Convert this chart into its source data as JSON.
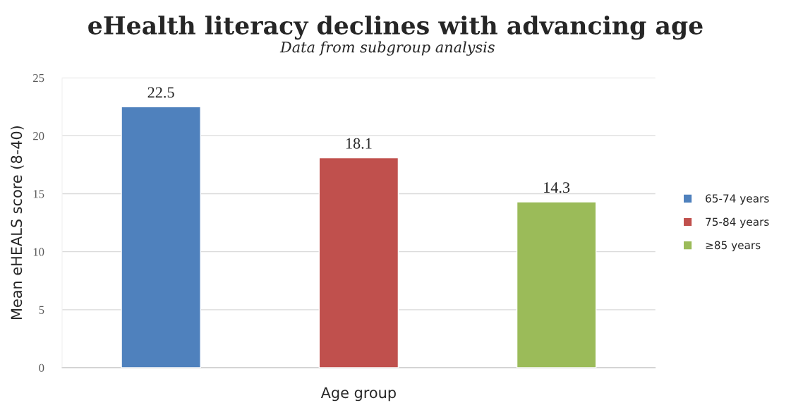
{
  "chart_data": {
    "type": "bar",
    "title": "eHealth literacy declines with advancing age",
    "subtitle": "Data from subgroup analysis",
    "xlabel": "Age group",
    "ylabel": "Mean eHEALS score (8-40)",
    "categories": [
      null,
      null,
      null
    ],
    "series": [
      {
        "name": "65-74 years",
        "color": "#4f81bd",
        "values": [
          22.5,
          null,
          null
        ]
      },
      {
        "name": "75-84 years",
        "color": "#c0504d",
        "values": [
          null,
          18.1,
          null
        ]
      },
      {
        "name": "≥85 years",
        "color": "#9bbb59",
        "values": [
          null,
          null,
          14.3
        ]
      }
    ],
    "ylim": [
      0,
      25
    ],
    "yticks": [
      0,
      5,
      10,
      15,
      20,
      25
    ],
    "grid": "y",
    "legend": "right",
    "data_labels": true
  }
}
